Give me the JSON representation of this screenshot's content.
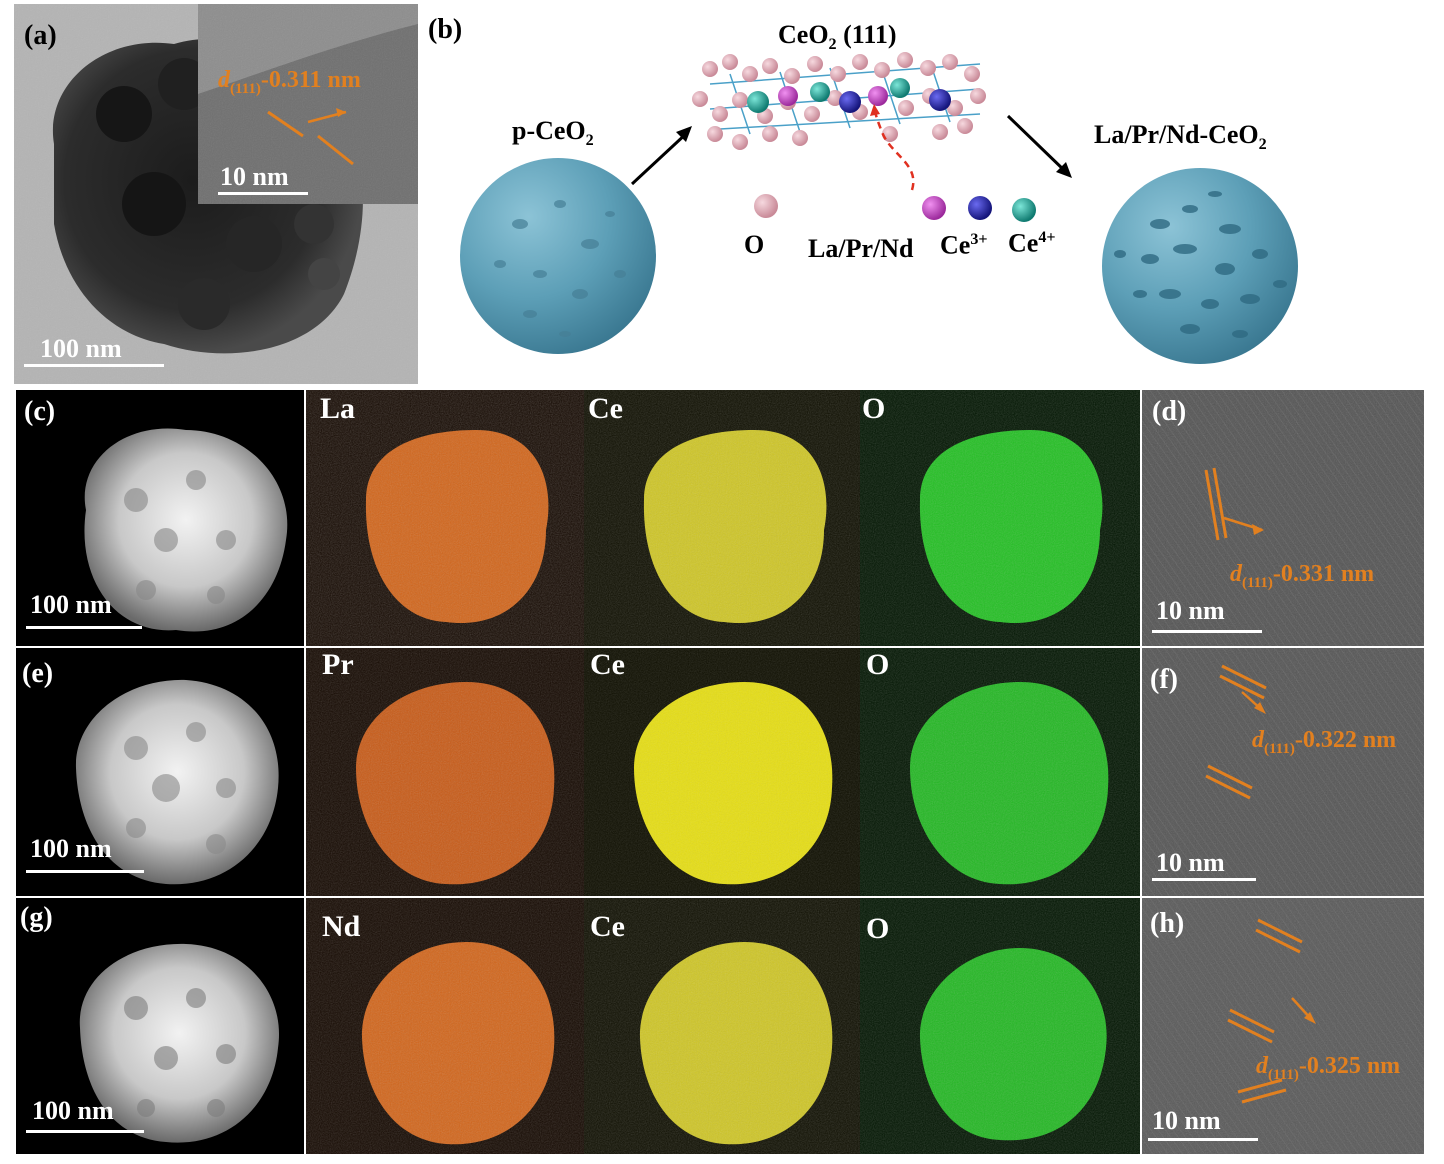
{
  "panels": {
    "a": {
      "label": "(a)",
      "scale_main": "100 nm",
      "scale_inset": "10 nm",
      "d_prefix": "d",
      "d_sub": "(111)",
      "d_value": "-0.311 nm"
    },
    "b": {
      "label": "(b)",
      "left_name_main": "p-CeO",
      "left_name_sub": "2",
      "top_title_main": "CeO",
      "top_title_sub": "2",
      "top_title_rest": " (111)",
      "right_name_main": "La/Pr/Nd-CeO",
      "right_name_sub": "2",
      "legend_o": "O",
      "legend_dopant": "La/Pr/Nd",
      "legend_ce3_main": "Ce",
      "legend_ce3_sup": "3+",
      "legend_ce4_main": "Ce",
      "legend_ce4_sup": "4+"
    },
    "c": {
      "label": "(c)",
      "scale": "100 nm"
    },
    "d": {
      "label": "(d)",
      "scale": "10 nm",
      "d_prefix": "d",
      "d_sub": "(111)",
      "d_value": "-0.331 nm"
    },
    "e": {
      "label": "(e)",
      "scale": "100 nm"
    },
    "f": {
      "label": "(f)",
      "scale": "10 nm",
      "d_prefix": "d",
      "d_sub": "(111)",
      "d_value": "-0.322 nm"
    },
    "g": {
      "label": "(g)",
      "scale": "100 nm"
    },
    "h": {
      "label": "(h)",
      "scale": "10 nm",
      "d_prefix": "d",
      "d_sub": "(111)",
      "d_value": "-0.325 nm"
    }
  },
  "maps": [
    {
      "row": 1,
      "elements": [
        "La",
        "Ce",
        "O"
      ]
    },
    {
      "row": 2,
      "elements": [
        "Pr",
        "Ce",
        "O"
      ]
    },
    {
      "row": 3,
      "elements": [
        "Nd",
        "Ce",
        "O"
      ]
    }
  ],
  "colors": {
    "la_map": "#d2651a",
    "ce_map": "#d8d020",
    "o_map": "#22c022",
    "sphere": "#5d9fb7",
    "atom_o": "#e6b3bf",
    "atom_dopant": "#cc4dcc",
    "atom_ce3": "#2a2ab8",
    "atom_ce4": "#1ea89a",
    "annot": "#e2801f"
  }
}
